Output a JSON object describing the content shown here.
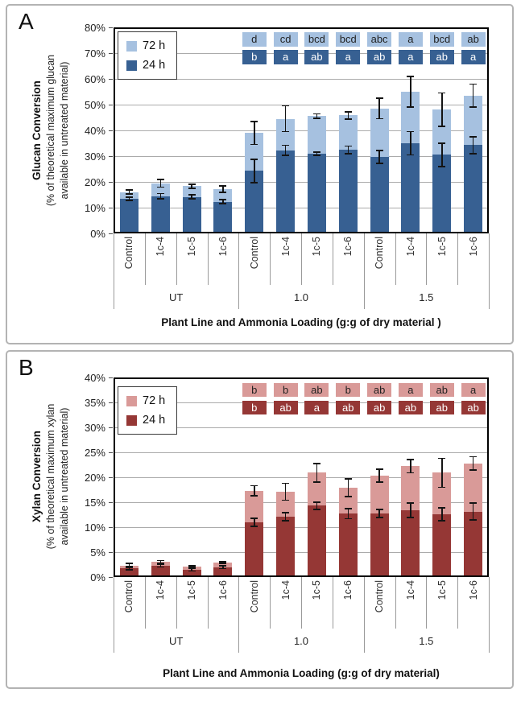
{
  "chart_data": [
    {
      "type": "bar",
      "stacked": true,
      "panel_label": "A",
      "title": "Glucan Conversion",
      "ylabel_lines": [
        "Glucan Conversion",
        "(% of theoretical maximum glucan",
        "available in untreated material)"
      ],
      "xlabel": "Plant Line and Ammonia Loading (g:g of dry material )",
      "y_axis": {
        "min": 0,
        "max": 80,
        "step": 10,
        "unit": "%"
      },
      "groups": [
        "UT",
        "1.0",
        "1.5"
      ],
      "categories": [
        "Control",
        "1c-4",
        "1c-5",
        "1c-6",
        "Control",
        "1c-4",
        "1c-5",
        "1c-6",
        "Control",
        "1c-4",
        "1c-5",
        "1c-6"
      ],
      "legend_position": "top-left",
      "grid": true,
      "note": "72 h values are cumulative stack totals; 24 h is the lower (dark) segment",
      "series": [
        {
          "name": "24 h",
          "color": "#376092",
          "values": [
            13.5,
            14.5,
            14.2,
            12.3,
            24.3,
            32.2,
            31.0,
            32.4,
            29.7,
            35.0,
            30.5,
            34.3
          ],
          "errors": [
            0.6,
            1.0,
            0.8,
            0.8,
            4.5,
            2.0,
            0.6,
            1.5,
            2.5,
            4.5,
            4.5,
            3.3
          ],
          "letters": [
            "",
            "",
            "",
            "",
            "b",
            "a",
            "ab",
            "a",
            "ab",
            "a",
            "ab",
            "a"
          ]
        },
        {
          "name": "72 h",
          "color": "#a6c1e0",
          "values": [
            16.0,
            19.5,
            18.3,
            17.2,
            39.0,
            44.5,
            45.6,
            45.8,
            48.5,
            55.0,
            48.0,
            53.5
          ],
          "errors": [
            0.8,
            1.5,
            0.8,
            1.2,
            4.5,
            5.0,
            0.8,
            1.5,
            4.0,
            6.0,
            6.5,
            4.5
          ],
          "letters": [
            "",
            "",
            "",
            "",
            "d",
            "cd",
            "bcd",
            "bcd",
            "abc",
            "a",
            "bcd",
            "ab"
          ]
        }
      ]
    },
    {
      "type": "bar",
      "stacked": true,
      "panel_label": "B",
      "title": "Xylan Conversion",
      "ylabel_lines": [
        "Xylan Conversion",
        "(% of theoretical maximum xylan",
        "available in untreated material)"
      ],
      "xlabel": "Plant Line and Ammonia Loading (g:g of dry material)",
      "y_axis": {
        "min": 0,
        "max": 40,
        "step": 5,
        "unit": "%"
      },
      "groups": [
        "UT",
        "1.0",
        "1.5"
      ],
      "categories": [
        "Control",
        "1c-4",
        "1c-5",
        "1c-6",
        "Control",
        "1c-4",
        "1c-5",
        "1c-6",
        "Control",
        "1c-4",
        "1c-5",
        "1c-6"
      ],
      "legend_position": "top-left",
      "grid": true,
      "note": "72 h values are cumulative stack totals; 24 h is the lower (dark) segment",
      "series": [
        {
          "name": "24 h",
          "color": "#953735",
          "values": [
            1.8,
            2.3,
            1.5,
            2.0,
            11.0,
            12.1,
            14.3,
            12.7,
            12.7,
            13.4,
            12.6,
            13.1
          ],
          "errors": [
            0.3,
            0.3,
            0.3,
            0.3,
            0.8,
            0.8,
            0.7,
            1.0,
            0.8,
            1.5,
            1.3,
            1.7
          ],
          "letters": [
            "",
            "",
            "",
            "",
            "b",
            "ab",
            "a",
            "ab",
            "ab",
            "ab",
            "ab",
            "ab"
          ]
        },
        {
          "name": "72 h",
          "color": "#d99a98",
          "values": [
            2.3,
            3.0,
            2.1,
            2.9,
            17.3,
            17.1,
            20.9,
            17.9,
            20.3,
            22.2,
            20.9,
            22.8
          ],
          "errors": [
            0.4,
            0.3,
            0.2,
            0.2,
            1.0,
            1.7,
            1.9,
            1.8,
            1.3,
            1.3,
            2.9,
            1.3
          ],
          "letters": [
            "",
            "",
            "",
            "",
            "b",
            "b",
            "ab",
            "b",
            "ab",
            "a",
            "ab",
            "a"
          ]
        }
      ]
    }
  ]
}
